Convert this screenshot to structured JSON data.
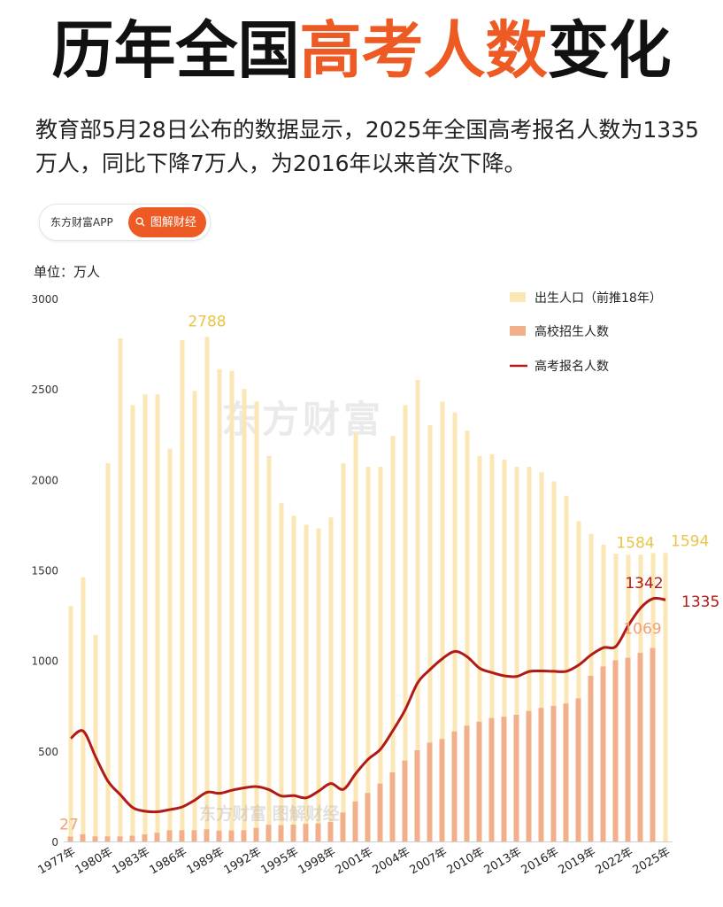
{
  "header": {
    "title_part1": "历年全国",
    "title_highlight": "高考人数",
    "title_part2": "变化",
    "subtitle": "教育部5月28日公布的数据显示，2025年全国高考报名人数为1335万人，同比下降7万人，为2016年以来首次下降。"
  },
  "brand": {
    "app_label": "东方财富APP",
    "tag_label": "图解财经",
    "search_icon": "search-icon"
  },
  "watermark": {
    "main": "东方财富",
    "footer": "东方财富 图解财经"
  },
  "unit_label": "单位：万人",
  "colors": {
    "accent": "#ee5a24",
    "births_bar": "#fbe7b5",
    "admissions_bar": "#f2b08a",
    "applicants_line": "#b11a15",
    "births_label": "#e8c547",
    "admissions_label": "#f0a074"
  },
  "chart_data": {
    "type": "bar",
    "ylim": [
      0,
      3000
    ],
    "yticks": [
      0,
      500,
      1000,
      1500,
      2000,
      2500,
      3000
    ],
    "x": [
      1977,
      1978,
      1979,
      1980,
      1981,
      1982,
      1983,
      1984,
      1985,
      1986,
      1987,
      1988,
      1989,
      1990,
      1991,
      1992,
      1993,
      1994,
      1995,
      1996,
      1997,
      1998,
      1999,
      2000,
      2001,
      2002,
      2003,
      2004,
      2005,
      2006,
      2007,
      2008,
      2009,
      2010,
      2011,
      2012,
      2013,
      2014,
      2015,
      2016,
      2017,
      2018,
      2019,
      2020,
      2021,
      2022,
      2023,
      2024,
      2025
    ],
    "xtick_labels": [
      "1977年",
      "1980年",
      "1983年",
      "1986年",
      "1989年",
      "1992年",
      "1995年",
      "1998年",
      "2001年",
      "2004年",
      "2007年",
      "2010年",
      "2013年",
      "2016年",
      "2019年",
      "2022年",
      "2025年"
    ],
    "series": [
      {
        "name": "出生人口（前推18年）",
        "kind": "bar",
        "values": [
          1300,
          1460,
          1140,
          2090,
          2780,
          2410,
          2470,
          2470,
          2170,
          2770,
          2490,
          2788,
          2610,
          2600,
          2500,
          2430,
          2130,
          1870,
          1800,
          1750,
          1730,
          1790,
          2090,
          2260,
          2070,
          2070,
          2240,
          2410,
          2550,
          2300,
          2430,
          2370,
          2270,
          2130,
          2140,
          2110,
          2070,
          2070,
          2040,
          1990,
          1910,
          1770,
          1700,
          1640,
          1590,
          1584,
          1584,
          1594,
          1594
        ]
      },
      {
        "name": "高校招生人数",
        "kind": "bar",
        "values": [
          27,
          40,
          28,
          28,
          28,
          32,
          39,
          48,
          62,
          62,
          62,
          67,
          60,
          61,
          62,
          75,
          92,
          90,
          93,
          97,
          100,
          108,
          160,
          221,
          268,
          320,
          382,
          447,
          504,
          546,
          566,
          608,
          640,
          662,
          682,
          689,
          700,
          721,
          738,
          749,
          762,
          791,
          915,
          967,
          1001,
          1015,
          1042,
          1069,
          0
        ]
      },
      {
        "name": "高考报名人数",
        "kind": "line",
        "values": [
          570,
          610,
          468,
          333,
          258,
          187,
          167,
          164,
          176,
          191,
          228,
          272,
          266,
          283,
          296,
          303,
          286,
          251,
          253,
          241,
          278,
          320,
          288,
          375,
          454,
          510,
          613,
          729,
          877,
          950,
          1010,
          1050,
          1020,
          957,
          933,
          915,
          912,
          939,
          942,
          940,
          940,
          975,
          1031,
          1071,
          1078,
          1193,
          1291,
          1342,
          1335
        ]
      }
    ],
    "annotations": [
      {
        "text": "2788",
        "series": "出生人口（前推18年）",
        "x": 1988
      },
      {
        "text": "1584",
        "series": "出生人口（前推18年）",
        "x": 2023
      },
      {
        "text": "1594",
        "series": "出生人口（前推18年）",
        "x": 2025
      },
      {
        "text": "27",
        "series": "高校招生人数",
        "x": 1977
      },
      {
        "text": "1069",
        "series": "高校招生人数",
        "x": 2024
      },
      {
        "text": "1342",
        "series": "高考报名人数",
        "x": 2024
      },
      {
        "text": "1335",
        "series": "高考报名人数",
        "x": 2025
      }
    ],
    "legend_position": "top-right",
    "grid": false
  }
}
